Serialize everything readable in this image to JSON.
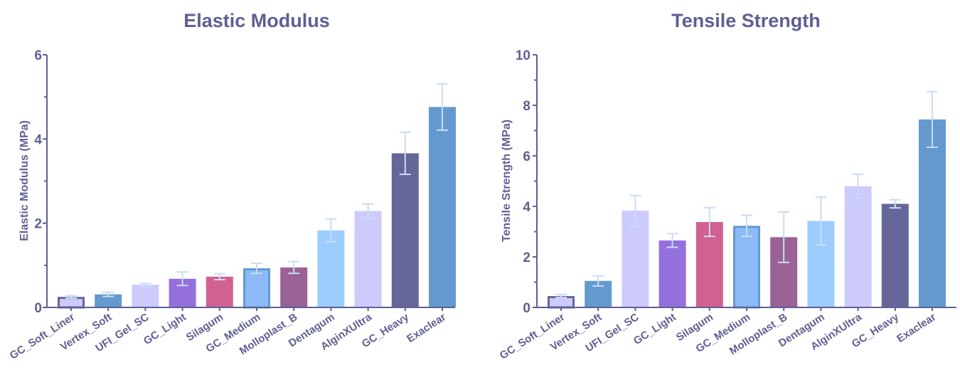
{
  "chart_data": [
    {
      "type": "bar",
      "title": "Elastic Modulus",
      "ylabel": "Elastic Modulus (MPa)",
      "xlabel": "",
      "ylim": [
        0,
        6
      ],
      "yticks": [
        0,
        2,
        4,
        6
      ],
      "grid": false,
      "categories": [
        "GC_Soft_Liner",
        "Vertex_Soft",
        "UFI_Gel_SC",
        "GC_Light",
        "Silagum",
        "GC_Medium",
        "Molloplast_B",
        "Dentagum",
        "AlginXUltra",
        "GC_Heavy",
        "Exaclear"
      ],
      "values": [
        0.25,
        0.31,
        0.54,
        0.68,
        0.73,
        0.93,
        0.95,
        1.83,
        2.29,
        3.66,
        4.76
      ],
      "error": [
        0.03,
        0.05,
        0.03,
        0.16,
        0.07,
        0.12,
        0.14,
        0.27,
        0.17,
        0.5,
        0.55
      ],
      "colors": [
        "#cdcbfc",
        "#6399cf",
        "#cdcbfc",
        "#9370db",
        "#d26091",
        "#8cbaf7",
        "#9b6295",
        "#9ccdfd",
        "#cdcbfc",
        "#666699",
        "#6399cf"
      ],
      "edge_colors": [
        "#666699",
        null,
        null,
        null,
        null,
        "#6399cf",
        null,
        null,
        null,
        null,
        null
      ]
    },
    {
      "type": "bar",
      "title": "Tensile Strength",
      "ylabel": "Tensile Strength (MPa)",
      "xlabel": "",
      "ylim": [
        0,
        10
      ],
      "yticks": [
        0,
        2,
        4,
        6,
        8,
        10
      ],
      "grid": false,
      "categories": [
        "GC_Soft_Liner",
        "Vertex_Soft",
        "UFI_Gel_SC",
        "GC_Light",
        "Silagum",
        "GC_Medium",
        "Molloplast_B",
        "Dentagum",
        "AlginXUltra",
        "GC_Heavy",
        "Exaclear"
      ],
      "values": [
        0.45,
        1.05,
        3.83,
        2.65,
        3.38,
        3.23,
        2.78,
        3.42,
        4.8,
        4.1,
        7.44
      ],
      "error": [
        0.06,
        0.2,
        0.6,
        0.27,
        0.57,
        0.42,
        1.0,
        0.95,
        0.47,
        0.16,
        1.1
      ],
      "colors": [
        "#cdcbfc",
        "#6399cf",
        "#cdcbfc",
        "#9370db",
        "#d26091",
        "#8cbaf7",
        "#9b6295",
        "#9ccdfd",
        "#cdcbfc",
        "#666699",
        "#6399cf"
      ],
      "edge_colors": [
        "#666699",
        null,
        null,
        null,
        null,
        "#6399cf",
        null,
        null,
        null,
        null,
        null
      ]
    }
  ]
}
